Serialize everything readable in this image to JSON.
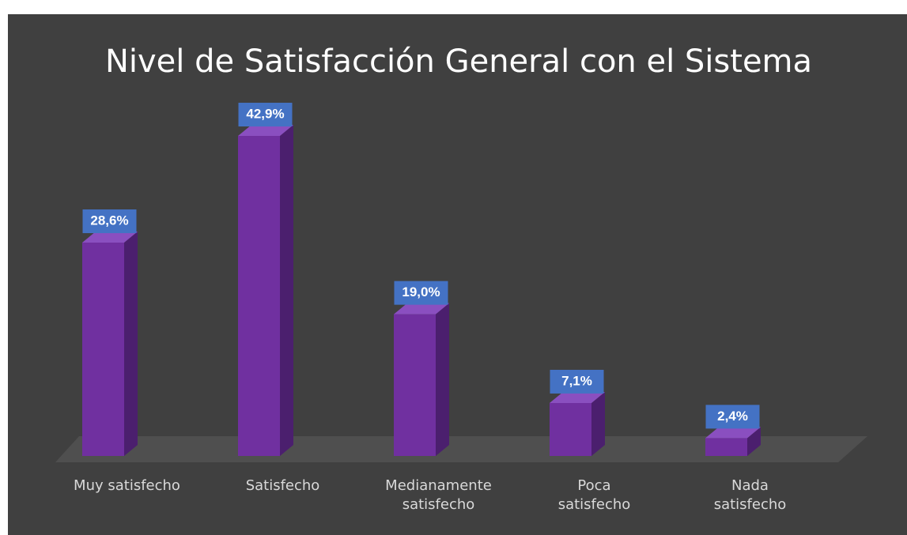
{
  "chart_data": {
    "type": "bar3d",
    "title": "Nivel de Satisfacción General con el Sistema",
    "categories": [
      "Muy satisfecho",
      "Satisfecho",
      "Medianamente satisfecho",
      "Poca satisfecho",
      "Nada satisfecho"
    ],
    "values": [
      28.6,
      42.9,
      19.0,
      7.1,
      2.4
    ],
    "value_labels": [
      "28,6%",
      "42,9%",
      "19,0%",
      "7,1%",
      "2,4%"
    ],
    "color": "#7030a0",
    "label_color": "#4472c4"
  }
}
